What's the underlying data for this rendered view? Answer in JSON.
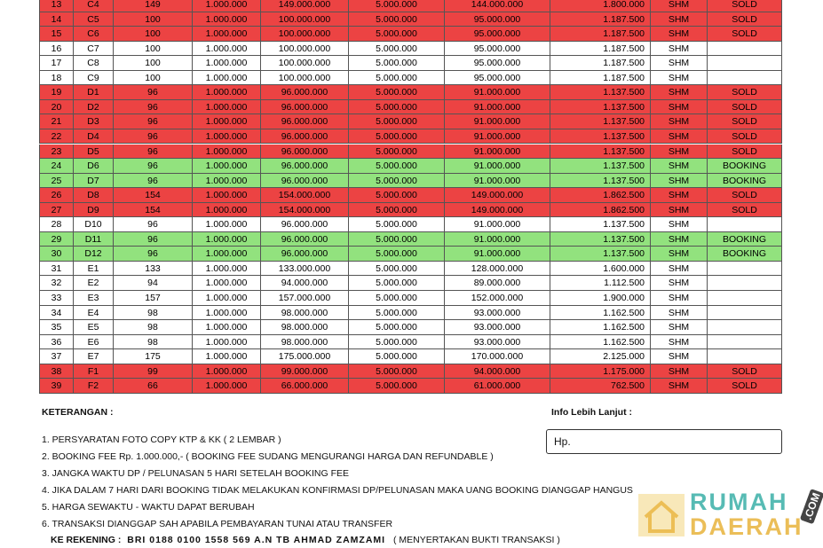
{
  "table": {
    "rows": [
      [
        "13",
        "C4",
        "149",
        "1.000.000",
        "149.000.000",
        "5.000.000",
        "144.000.000",
        "1.800.000",
        "SHM",
        "SOLD"
      ],
      [
        "14",
        "C5",
        "100",
        "1.000.000",
        "100.000.000",
        "5.000.000",
        "95.000.000",
        "1.187.500",
        "SHM",
        "SOLD"
      ],
      [
        "15",
        "C6",
        "100",
        "1.000.000",
        "100.000.000",
        "5.000.000",
        "95.000.000",
        "1.187.500",
        "SHM",
        "SOLD"
      ],
      [
        "16",
        "C7",
        "100",
        "1.000.000",
        "100.000.000",
        "5.000.000",
        "95.000.000",
        "1.187.500",
        "SHM",
        null
      ],
      [
        "17",
        "C8",
        "100",
        "1.000.000",
        "100.000.000",
        "5.000.000",
        "95.000.000",
        "1.187.500",
        "SHM",
        null
      ],
      [
        "18",
        "C9",
        "100",
        "1.000.000",
        "100.000.000",
        "5.000.000",
        "95.000.000",
        "1.187.500",
        "SHM",
        null
      ],
      [
        "19",
        "D1",
        "96",
        "1.000.000",
        "96.000.000",
        "5.000.000",
        "91.000.000",
        "1.137.500",
        "SHM",
        "SOLD"
      ],
      [
        "20",
        "D2",
        "96",
        "1.000.000",
        "96.000.000",
        "5.000.000",
        "91.000.000",
        "1.137.500",
        "SHM",
        "SOLD"
      ],
      [
        "21",
        "D3",
        "96",
        "1.000.000",
        "96.000.000",
        "5.000.000",
        "91.000.000",
        "1.137.500",
        "SHM",
        "SOLD"
      ],
      [
        "22",
        "D4",
        "96",
        "1.000.000",
        "96.000.000",
        "5.000.000",
        "91.000.000",
        "1.137.500",
        "SHM",
        "SOLD"
      ],
      [
        "23",
        "D5",
        "96",
        "1.000.000",
        "96.000.000",
        "5.000.000",
        "91.000.000",
        "1.137.500",
        "SHM",
        "SOLD"
      ],
      [
        "24",
        "D6",
        "96",
        "1.000.000",
        "96.000.000",
        "5.000.000",
        "91.000.000",
        "1.137.500",
        "SHM",
        "BOOKING"
      ],
      [
        "25",
        "D7",
        "96",
        "1.000.000",
        "96.000.000",
        "5.000.000",
        "91.000.000",
        "1.137.500",
        "SHM",
        "BOOKING"
      ],
      [
        "26",
        "D8",
        "154",
        "1.000.000",
        "154.000.000",
        "5.000.000",
        "149.000.000",
        "1.862.500",
        "SHM",
        "SOLD"
      ],
      [
        "27",
        "D9",
        "154",
        "1.000.000",
        "154.000.000",
        "5.000.000",
        "149.000.000",
        "1.862.500",
        "SHM",
        "SOLD"
      ],
      [
        "28",
        "D10",
        "96",
        "1.000.000",
        "96.000.000",
        "5.000.000",
        "91.000.000",
        "1.137.500",
        "SHM",
        null
      ],
      [
        "29",
        "D11",
        "96",
        "1.000.000",
        "96.000.000",
        "5.000.000",
        "91.000.000",
        "1.137.500",
        "SHM",
        "BOOKING"
      ],
      [
        "30",
        "D12",
        "96",
        "1.000.000",
        "96.000.000",
        "5.000.000",
        "91.000.000",
        "1.137.500",
        "SHM",
        "BOOKING"
      ],
      [
        "31",
        "E1",
        "133",
        "1.000.000",
        "133.000.000",
        "5.000.000",
        "128.000.000",
        "1.600.000",
        "SHM",
        null
      ],
      [
        "32",
        "E2",
        "94",
        "1.000.000",
        "94.000.000",
        "5.000.000",
        "89.000.000",
        "1.112.500",
        "SHM",
        null
      ],
      [
        "33",
        "E3",
        "157",
        "1.000.000",
        "157.000.000",
        "5.000.000",
        "152.000.000",
        "1.900.000",
        "SHM",
        null
      ],
      [
        "34",
        "E4",
        "98",
        "1.000.000",
        "98.000.000",
        "5.000.000",
        "93.000.000",
        "1.162.500",
        "SHM",
        null
      ],
      [
        "35",
        "E5",
        "98",
        "1.000.000",
        "98.000.000",
        "5.000.000",
        "93.000.000",
        "1.162.500",
        "SHM",
        null
      ],
      [
        "36",
        "E6",
        "98",
        "1.000.000",
        "98.000.000",
        "5.000.000",
        "93.000.000",
        "1.162.500",
        "SHM",
        null
      ],
      [
        "37",
        "E7",
        "175",
        "1.000.000",
        "175.000.000",
        "5.000.000",
        "170.000.000",
        "2.125.000",
        "SHM",
        null
      ],
      [
        "38",
        "F1",
        "99",
        "1.000.000",
        "99.000.000",
        "5.000.000",
        "94.000.000",
        "1.175.000",
        "SHM",
        "SOLD"
      ],
      [
        "39",
        "F2",
        "66",
        "1.000.000",
        "66.000.000",
        "5.000.000",
        "61.000.000",
        "762.500",
        "SHM",
        "SOLD"
      ]
    ],
    "row_colors": [
      "#ec4343",
      "#ec4343",
      "#ec4343",
      "#ffffff",
      "#ffffff",
      "#ffffff",
      "#ec4343",
      "#ec4343",
      "#ec4343",
      "#ec4343",
      "#ec4343",
      "#92e27e",
      "#92e27e",
      "#ec4343",
      "#ec4343",
      "#ffffff",
      "#92e27e",
      "#92e27e",
      "#ffffff",
      "#ffffff",
      "#ffffff",
      "#ffffff",
      "#ffffff",
      "#ffffff",
      "#ffffff",
      "#ec4343",
      "#ec4343"
    ]
  },
  "notes": {
    "title": "KETERANGAN :",
    "items": [
      "1. PERSYARATAN FOTO COPY KTP & KK ( 2 LEMBAR )",
      "2. BOOKING FEE Rp. 1.000.000,- ( BOOKING FEE SUDANG MENGURANGI HARGA DAN REFUNDABLE )",
      "3. JANGKA WAKTU DP / PELUNASAN 5 HARI SETELAH BOOKING FEE",
      "4. JIKA DALAM 7 HARI DARI BOOKING TIDAK MELAKUKAN KONFIRMASI DP/PELUNASAN MAKA UANG BOOKING DIANGGAP HANGUS",
      "5. HARGA SEWAKTU - WAKTU DAPAT BERUBAH",
      "6. TRANSAKSI DIANGGAP SAH APABILA PEMBAYARAN TUNAI ATAU TRANSFER"
    ],
    "account_label": "KE REKENING :",
    "account": "BRI  0188 0100 1558 569  A.N  TB AHMAD ZAMZAMI",
    "account_note": "( MENYERTAKAN BUKTI TRANSAKSI )"
  },
  "info": {
    "title": "Info Lebih Lanjut  :",
    "phone": "Hp."
  },
  "watermark": {
    "line1": "RUMAH",
    "line2": "DAERAH",
    "suffix": ".COM"
  }
}
